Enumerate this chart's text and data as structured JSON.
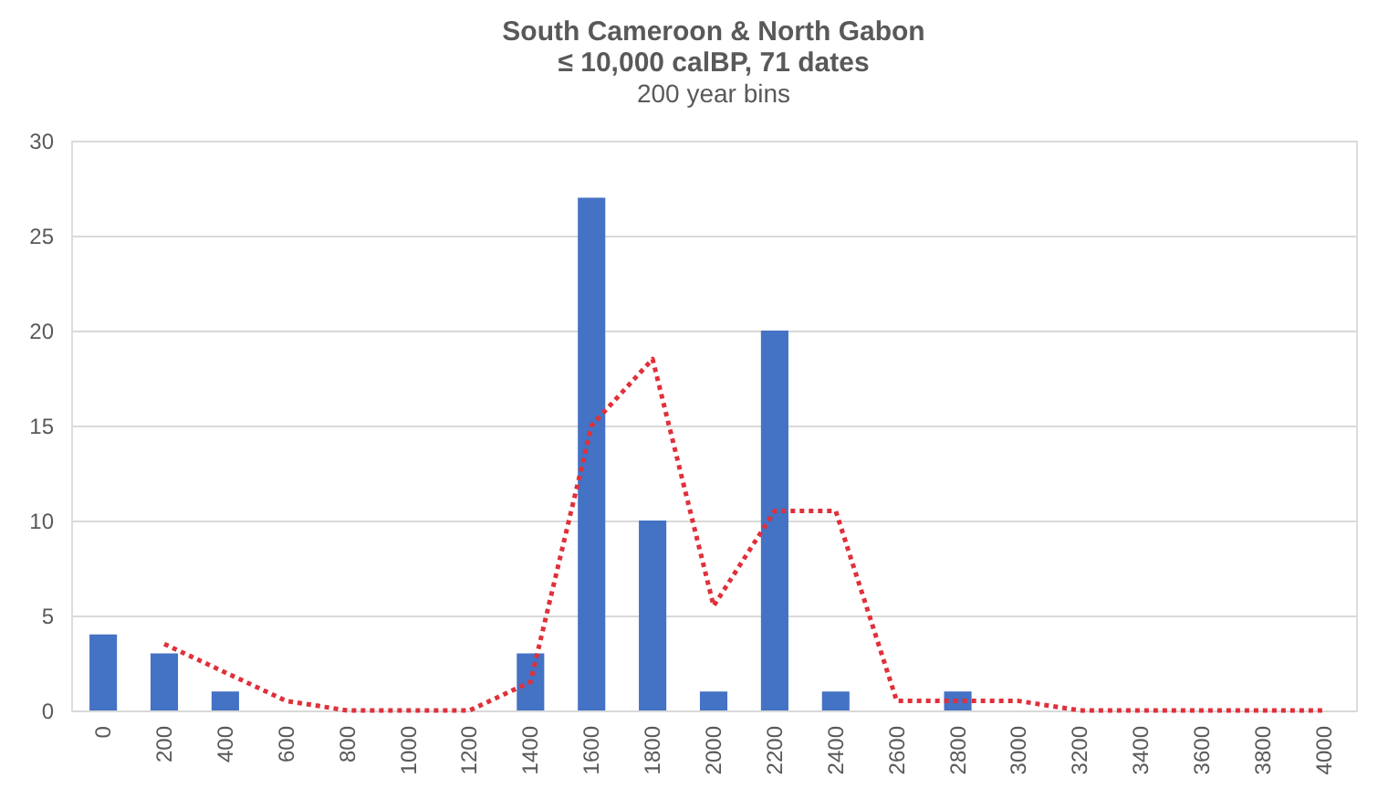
{
  "chart_data": {
    "type": "bar",
    "title": [
      "South Cameroon & North Gabon",
      "≤ 10,000 calBP, 71 dates"
    ],
    "subtitle": "200 year bins",
    "categories": [
      "0",
      "200",
      "400",
      "600",
      "800",
      "1000",
      "1200",
      "1400",
      "1600",
      "1800",
      "2000",
      "2200",
      "2400",
      "2600",
      "2800",
      "3000",
      "3200",
      "3400",
      "3600",
      "3800",
      "4000"
    ],
    "series": [
      {
        "color": "#4472c4",
        "values": [
          4,
          3,
          1,
          0,
          0,
          0,
          0,
          3,
          27,
          10,
          1,
          20,
          1,
          0,
          1,
          0,
          0,
          0,
          0,
          0,
          0
        ]
      },
      {
        "type": "line",
        "color": "#e0303a",
        "line_style": "dotted",
        "values": [
          null,
          3.5,
          2,
          0.5,
          0,
          0,
          0,
          1.5,
          15,
          18.5,
          5.5,
          10.5,
          10.5,
          0.5,
          0.5,
          0.5,
          0,
          0,
          0,
          0,
          0
        ]
      }
    ],
    "ylim": [
      0,
      30
    ],
    "yticks": [
      0,
      5,
      10,
      15,
      20,
      25,
      30
    ],
    "grid": "y"
  }
}
